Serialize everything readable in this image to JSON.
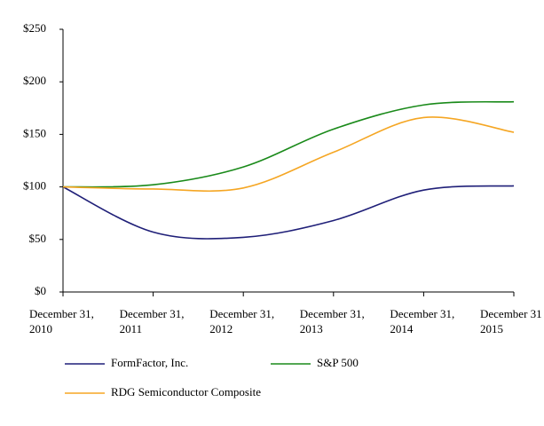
{
  "chart_data": {
    "type": "line",
    "categories": [
      "December 31,\n2010",
      "December 31,\n2011",
      "December 31,\n2012",
      "December 31,\n2013",
      "December 31,\n2014",
      "December 31\n2015"
    ],
    "series": [
      {
        "name": "FormFactor, Inc.",
        "color": "#1f1f78",
        "values": [
          100,
          57,
          52,
          68,
          97,
          101
        ]
      },
      {
        "name": "S&P 500",
        "color": "#1a8a1a",
        "values": [
          100,
          102,
          119,
          155,
          178,
          181
        ]
      },
      {
        "name": "RDG Semiconductor Composite",
        "color": "#f5a623",
        "values": [
          100,
          98,
          99,
          133,
          166,
          152
        ]
      }
    ],
    "ylim": [
      0,
      250
    ],
    "yticks": [
      {
        "value": 0,
        "label": "$0"
      },
      {
        "value": 50,
        "label": "$50"
      },
      {
        "value": 100,
        "label": "$100"
      },
      {
        "value": 150,
        "label": "$150"
      },
      {
        "value": 200,
        "label": "$200"
      },
      {
        "value": 250,
        "label": "$250"
      }
    ]
  }
}
